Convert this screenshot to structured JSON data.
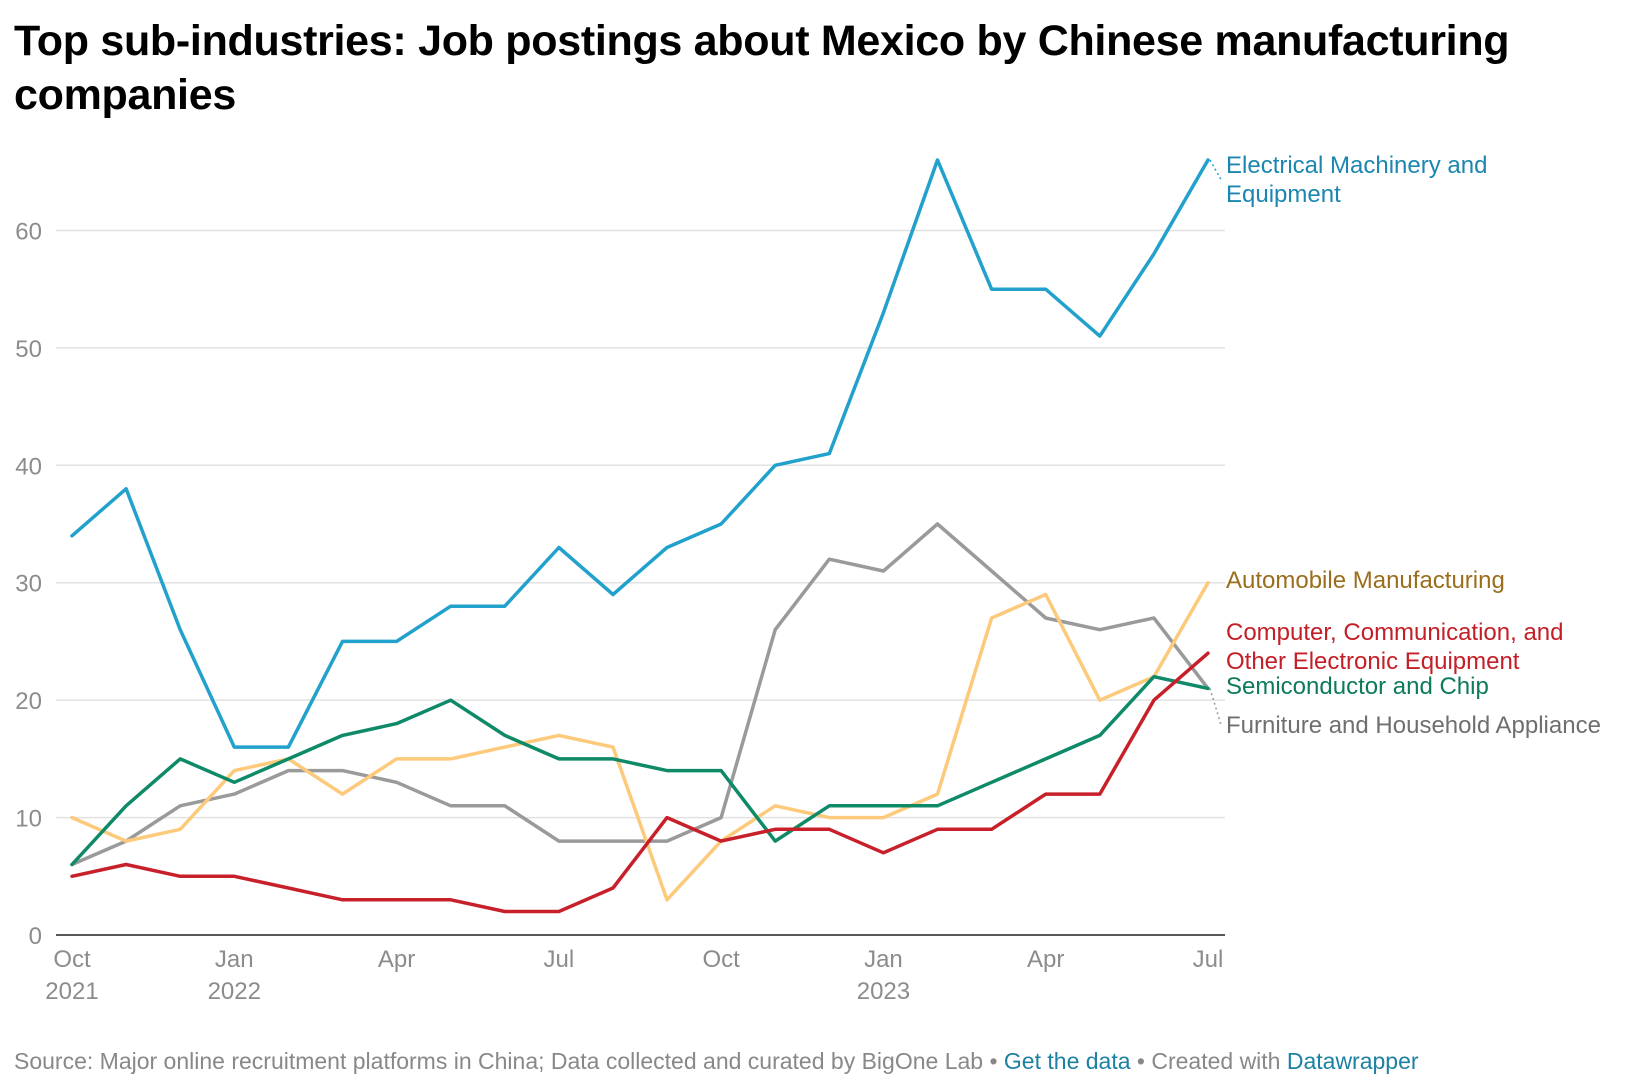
{
  "title": "Top sub-industries: Job postings about Mexico by Chinese manufacturing companies",
  "footer": {
    "source": "Source: Major online recruitment platforms in China; Data collected and curated by BigOne Lab",
    "sep1": " • ",
    "get_data": "Get the data",
    "sep2": " • Created with ",
    "datawrapper": "Datawrapper"
  },
  "chart_data": {
    "type": "line",
    "x": [
      "2021-10",
      "2021-11",
      "2021-12",
      "2022-01",
      "2022-02",
      "2022-03",
      "2022-04",
      "2022-05",
      "2022-06",
      "2022-07",
      "2022-08",
      "2022-09",
      "2022-10",
      "2022-11",
      "2022-12",
      "2023-01",
      "2023-02",
      "2023-03",
      "2023-04",
      "2023-05",
      "2023-06",
      "2023-07"
    ],
    "x_ticks": [
      {
        "index": 0,
        "label": "Oct",
        "sublabel": "2021"
      },
      {
        "index": 3,
        "label": "Jan",
        "sublabel": "2022"
      },
      {
        "index": 6,
        "label": "Apr",
        "sublabel": ""
      },
      {
        "index": 9,
        "label": "Jul",
        "sublabel": ""
      },
      {
        "index": 12,
        "label": "Oct",
        "sublabel": ""
      },
      {
        "index": 15,
        "label": "Jan",
        "sublabel": "2023"
      },
      {
        "index": 18,
        "label": "Apr",
        "sublabel": ""
      },
      {
        "index": 21,
        "label": "Jul",
        "sublabel": ""
      }
    ],
    "ylim": [
      0,
      66
    ],
    "yticks": [
      0,
      10,
      20,
      30,
      40,
      50,
      60
    ],
    "grid": true,
    "legend": "direct labels at right end of lines",
    "series": [
      {
        "name": "Electrical Machinery and Equipment",
        "label_lines": [
          "Electrical Machinery and",
          "Equipment"
        ],
        "color": "#22a1cc",
        "label_color": "#1b87b0",
        "values": [
          34,
          38,
          26,
          16,
          16,
          25,
          25,
          28,
          28,
          33,
          29,
          33,
          35,
          40,
          41,
          53,
          66,
          55,
          55,
          51,
          58,
          66
        ]
      },
      {
        "name": "Furniture and Household Appliance",
        "label_lines": [
          "Furniture and Household Appliance"
        ],
        "color": "#9a9a9a",
        "label_color": "#6f6f6f",
        "values": [
          6,
          8,
          11,
          12,
          14,
          14,
          13,
          11,
          11,
          8,
          8,
          8,
          10,
          26,
          32,
          31,
          35,
          31,
          27,
          26,
          27,
          21
        ]
      },
      {
        "name": "Automobile Manufacturing",
        "label_lines": [
          "Automobile Manufacturing"
        ],
        "color": "#fdc97a",
        "label_color": "#9a6e1c",
        "values": [
          10,
          8,
          9,
          14,
          15,
          12,
          15,
          15,
          16,
          17,
          16,
          3,
          8,
          11,
          10,
          10,
          12,
          27,
          29,
          20,
          22,
          30
        ]
      },
      {
        "name": "Semiconductor and Chip",
        "label_lines": [
          "Semiconductor and Chip"
        ],
        "color": "#0f8a69",
        "label_color": "#0d7a5c",
        "values": [
          6,
          11,
          15,
          13,
          15,
          17,
          18,
          20,
          17,
          15,
          15,
          14,
          14,
          8,
          11,
          11,
          11,
          13,
          15,
          17,
          22,
          21
        ]
      },
      {
        "name": "Computer, Communication, and Other Electronic Equipment",
        "label_lines": [
          "Computer, Communication, and",
          "Other Electronic Equipment"
        ],
        "color": "#c8202a",
        "label_color": "#c41e26",
        "values": [
          5,
          6,
          5,
          5,
          4,
          3,
          3,
          3,
          2,
          2,
          4,
          10,
          8,
          9,
          9,
          7,
          9,
          9,
          12,
          12,
          20,
          24
        ]
      }
    ]
  }
}
